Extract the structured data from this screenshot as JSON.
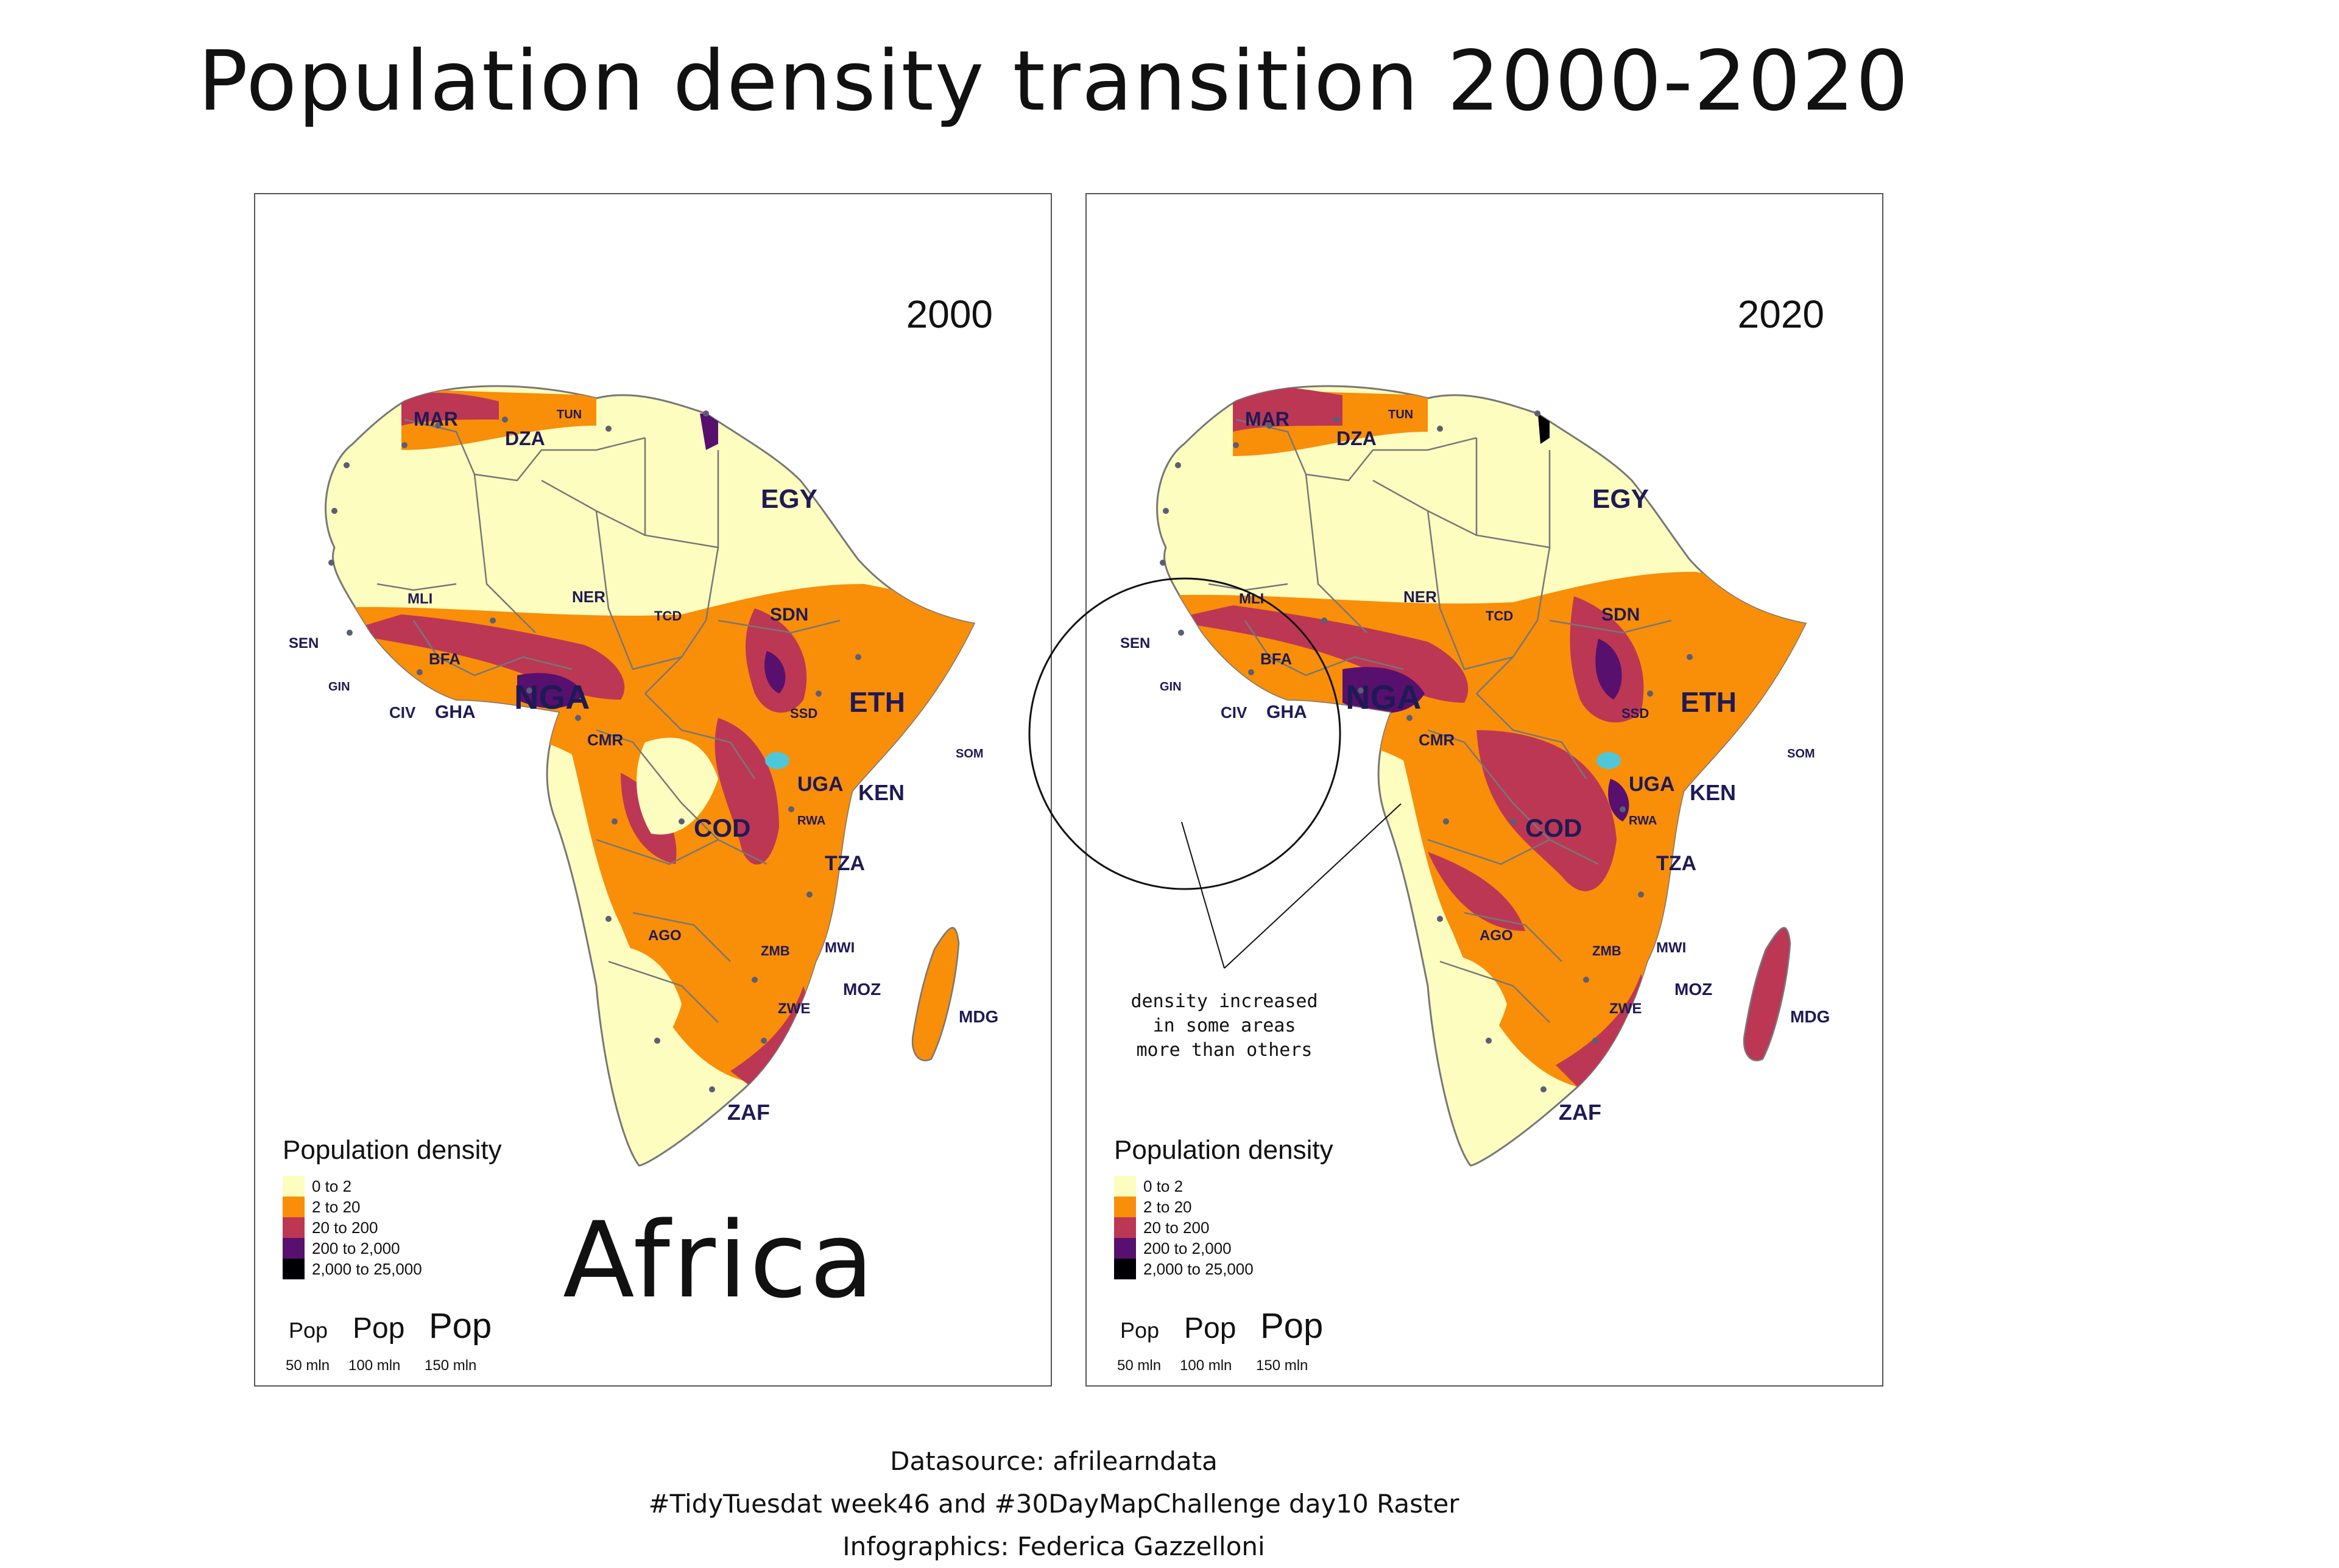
{
  "title": "Population density transition 2000-2020",
  "panels": [
    {
      "year": "2000",
      "big_label": "Africa"
    },
    {
      "year": "2020",
      "annotation": [
        "density increased",
        "in some areas",
        "more than others"
      ]
    }
  ],
  "legend": {
    "title": "Population density",
    "items": [
      {
        "label": "0 to 2",
        "color": "#fcfdbf"
      },
      {
        "label": "2 to 20",
        "color": "#f98e09"
      },
      {
        "label": "20 to 200",
        "color": "#bc3754"
      },
      {
        "label": "200 to 2,000",
        "color": "#57106e"
      },
      {
        "label": "2,000 to 25,000",
        "color": "#000004"
      }
    ],
    "size_items": [
      {
        "symbol": "Pop",
        "label": "50 mln"
      },
      {
        "symbol": "Pop",
        "label": "100 mln"
      },
      {
        "symbol": "Pop",
        "label": "150 mln"
      }
    ]
  },
  "countries": {
    "MAR": "MAR",
    "DZA": "DZA",
    "TUN": "TUN",
    "EGY": "EGY",
    "MLI": "MLI",
    "NER": "NER",
    "TCD": "TCD",
    "SDN": "SDN",
    "SEN": "SEN",
    "BFA": "BFA",
    "GIN": "GIN",
    "CIV": "CIV",
    "GHA": "GHA",
    "NGA": "NGA",
    "ETH": "ETH",
    "SSD": "SSD",
    "SOM": "SOM",
    "CMR": "CMR",
    "UGA": "UGA",
    "KEN": "KEN",
    "RWA": "RWA",
    "COD": "COD",
    "TZA": "TZA",
    "AGO": "AGO",
    "ZMB": "ZMB",
    "MWI": "MWI",
    "MOZ": "MOZ",
    "ZWE": "ZWE",
    "MDG": "MDG",
    "ZAF": "ZAF"
  },
  "footer": [
    "Datasource: afrilearndata",
    "#TidyTuesdat week46 and #30DayMapChallenge day10 Raster",
    "Infographics: Federica Gazzelloni"
  ]
}
